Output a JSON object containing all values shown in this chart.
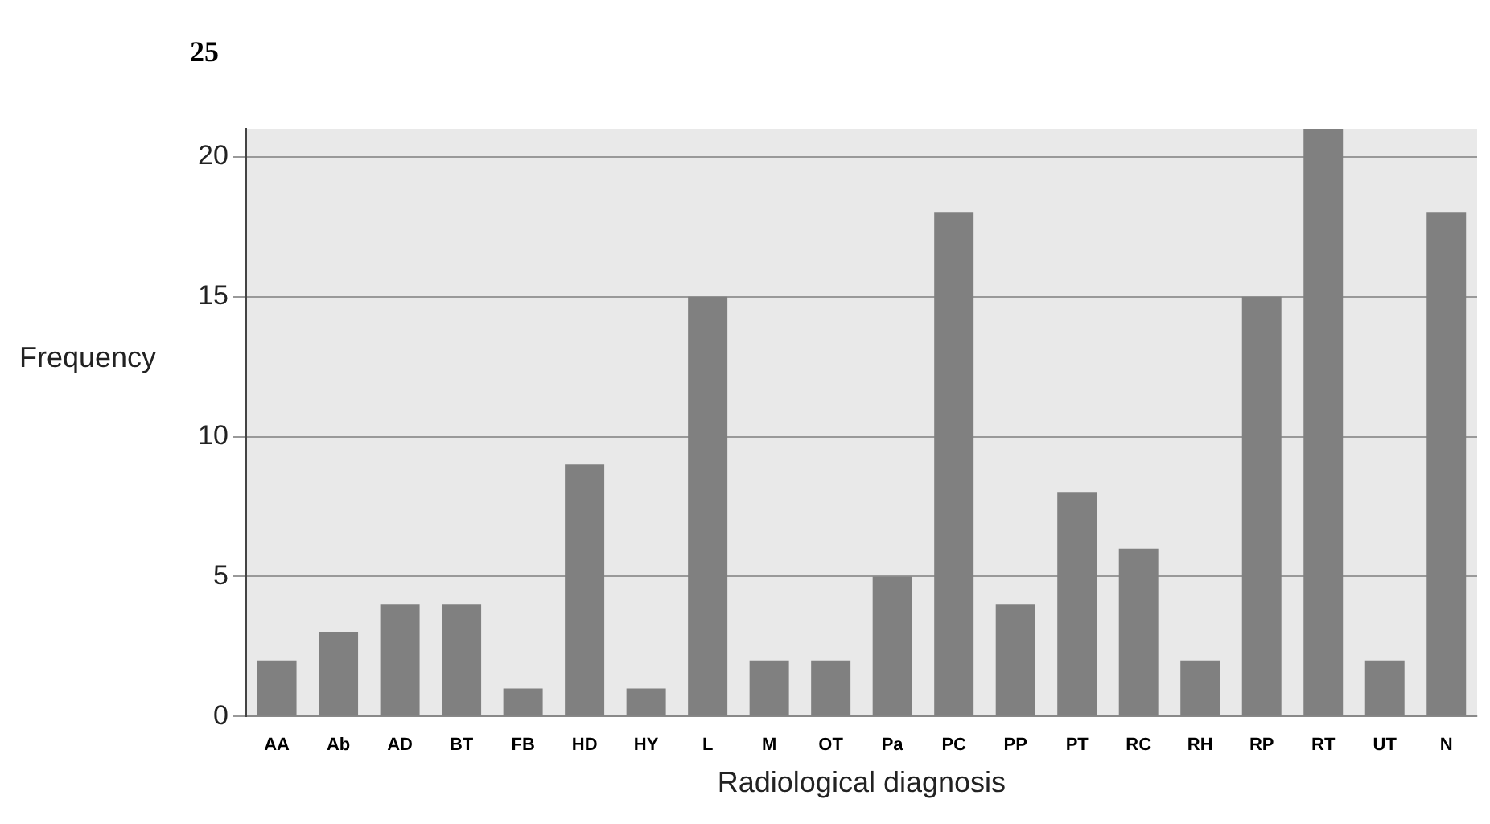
{
  "chart_data": {
    "type": "bar",
    "xlabel": "Radiological diagnosis",
    "ylabel": "Frequency",
    "annotations": [
      "25"
    ],
    "categories": [
      "AA",
      "Ab",
      "AD",
      "BT",
      "FB",
      "HD",
      "HY",
      "L",
      "M",
      "OT",
      "Pa",
      "PC",
      "PP",
      "PT",
      "RC",
      "RH",
      "RP",
      "RT",
      "UT",
      "N"
    ],
    "values": [
      2,
      3,
      4,
      4,
      1,
      9,
      1,
      15,
      2,
      2,
      5,
      18,
      4,
      8,
      6,
      2,
      15,
      21,
      2,
      18
    ],
    "color": "#808080",
    "ylim": [
      0,
      21
    ],
    "yticks": [
      0,
      5,
      10,
      15,
      20
    ],
    "grid": "y",
    "legend": false
  }
}
